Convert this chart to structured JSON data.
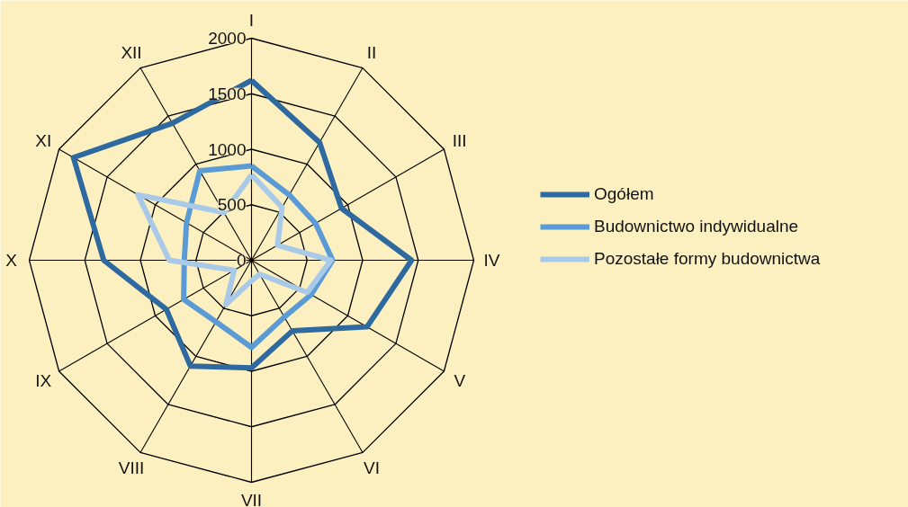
{
  "chart_data": {
    "type": "radar",
    "categories": [
      "I",
      "II",
      "III",
      "IV",
      "V",
      "VI",
      "VII",
      "VIII",
      "IX",
      "X",
      "XI",
      "XII"
    ],
    "ylim": [
      0,
      2000
    ],
    "yticks": [
      0,
      500,
      1000,
      1500,
      2000
    ],
    "grid": true,
    "legend": "right",
    "marker": "none",
    "line_style": "solid",
    "series": [
      {
        "name": "Ogółem",
        "color": "#2e6aa0",
        "values": [
          1620,
          1225,
          935,
          1440,
          1200,
          735,
          970,
          1100,
          885,
          1330,
          1850,
          1425
        ]
      },
      {
        "name": "Budownictwo indywidualne",
        "color": "#5b9bd5",
        "values": [
          850,
          680,
          665,
          730,
          620,
          590,
          785,
          640,
          705,
          605,
          675,
          930
        ]
      },
      {
        "name": "Pozostałe formy budownictwa",
        "color": "#a9c9e8",
        "values": [
          770,
          550,
          270,
          715,
          580,
          145,
          185,
          460,
          180,
          740,
          1180,
          495
        ]
      }
    ]
  }
}
